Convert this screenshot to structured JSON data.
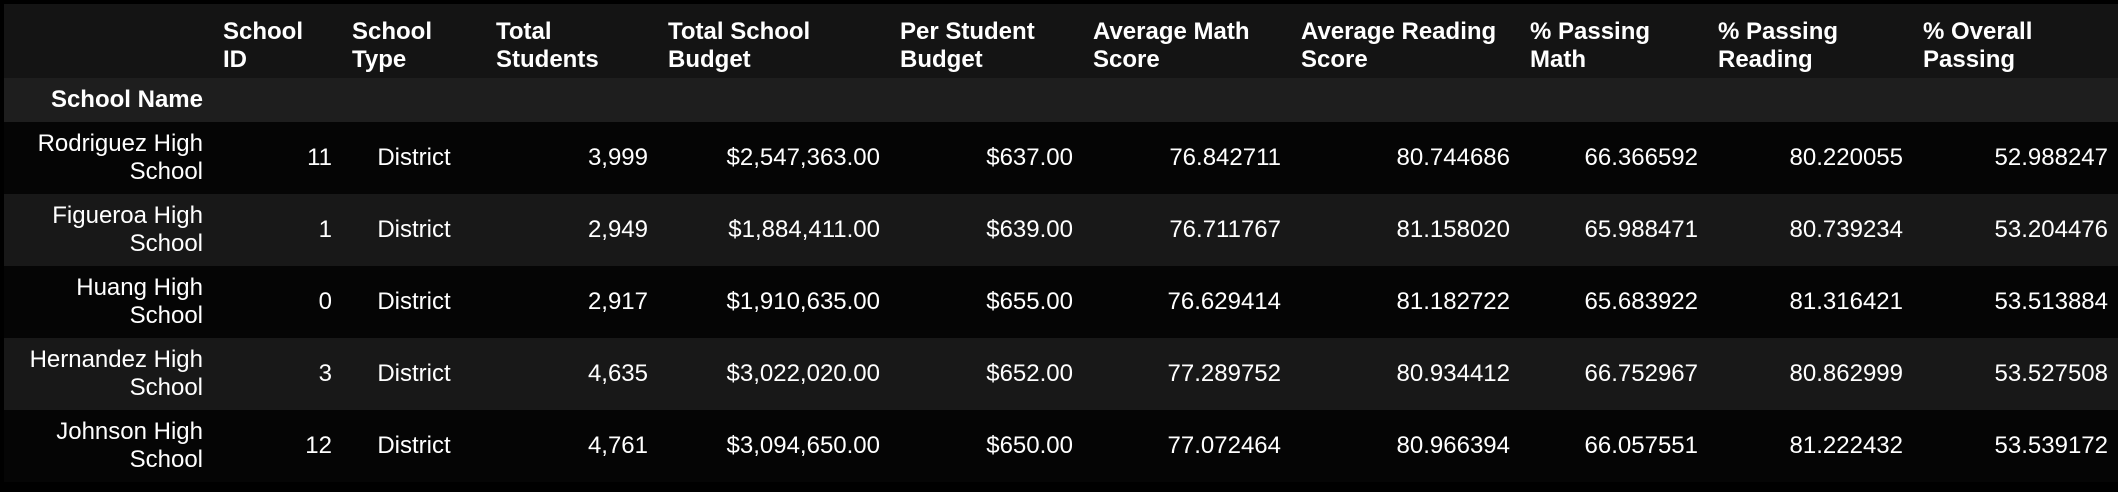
{
  "table": {
    "columns": [
      "School ID",
      "School Type",
      "Total Students",
      "Total School Budget",
      "Per Student Budget",
      "Average Math Score",
      "Average Reading Score",
      "% Passing Math",
      "% Passing Reading",
      "% Overall Passing"
    ],
    "index_name": "School Name",
    "rows": [
      {
        "name": "Rodriguez High School",
        "cells": [
          "11",
          "District",
          "3,999",
          "$2,547,363.00",
          "$637.00",
          "76.842711",
          "80.744686",
          "66.366592",
          "80.220055",
          "52.988247"
        ]
      },
      {
        "name": "Figueroa High School",
        "cells": [
          "1",
          "District",
          "2,949",
          "$1,884,411.00",
          "$639.00",
          "76.711767",
          "81.158020",
          "65.988471",
          "80.739234",
          "53.204476"
        ]
      },
      {
        "name": "Huang High School",
        "cells": [
          "0",
          "District",
          "2,917",
          "$1,910,635.00",
          "$655.00",
          "76.629414",
          "81.182722",
          "65.683922",
          "81.316421",
          "53.513884"
        ]
      },
      {
        "name": "Hernandez High School",
        "cells": [
          "3",
          "District",
          "4,635",
          "$3,022,020.00",
          "$652.00",
          "77.289752",
          "80.934412",
          "66.752967",
          "80.862999",
          "53.527508"
        ]
      },
      {
        "name": "Johnson High School",
        "cells": [
          "12",
          "District",
          "4,761",
          "$3,094,650.00",
          "$650.00",
          "77.072464",
          "80.966394",
          "66.057551",
          "81.222432",
          "53.539172"
        ]
      }
    ]
  }
}
